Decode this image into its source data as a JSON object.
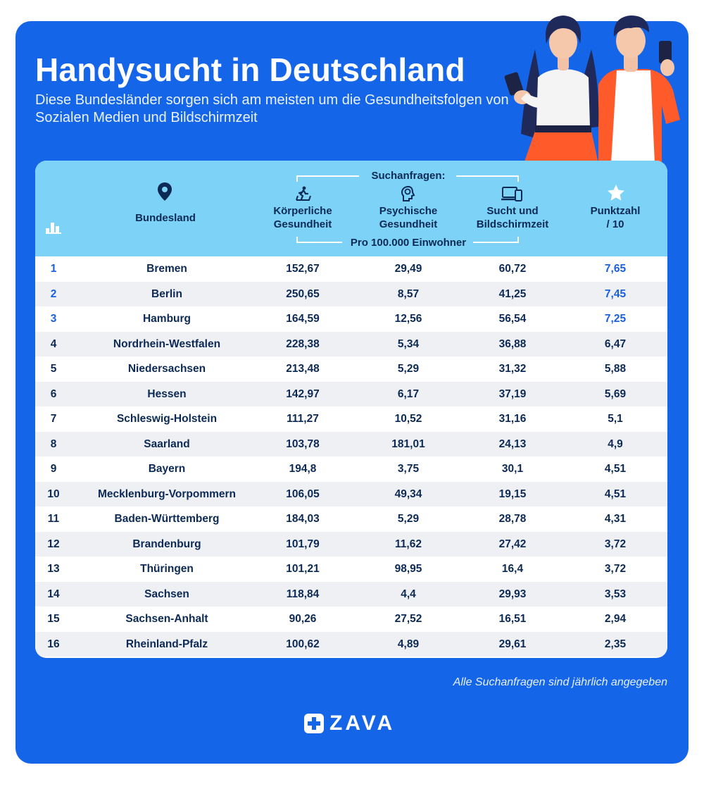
{
  "title": "Handysucht in Deutschland",
  "subtitle": "Diese Bundesländer sorgen sich am meisten um die Gesundheitsfolgen von Sozialen Medien und Bildschirmzeit",
  "colors": {
    "background": "#1565e8",
    "header": "#7dd3f7",
    "text": "#0c2a55",
    "highlight": "#1a5fe0"
  },
  "table": {
    "headers": {
      "bundesland": "Bundesland",
      "group_top": "Suchanfragen:",
      "group_bottom": "Pro 100.000 Einwohner",
      "koerper_1": "Körperliche",
      "koerper_2": "Gesundheit",
      "psych_1": "Psychische",
      "psych_2": "Gesundheit",
      "sucht_1": "Sucht und",
      "sucht_2": "Bildschirmzeit",
      "score_1": "Punktzahl",
      "score_2": "/ 10"
    },
    "icons": {
      "rank": "bar-chart-icon",
      "bundesland": "location-pin-icon",
      "koerper": "treadmill-icon",
      "psych": "brain-head-icon",
      "sucht": "devices-icon",
      "score": "star-icon"
    },
    "rows": [
      {
        "rank": "1",
        "name": "Bremen",
        "koerper": "152,67",
        "psych": "29,49",
        "sucht": "60,72",
        "score": "7,65"
      },
      {
        "rank": "2",
        "name": "Berlin",
        "koerper": "250,65",
        "psych": "8,57",
        "sucht": "41,25",
        "score": "7,45"
      },
      {
        "rank": "3",
        "name": "Hamburg",
        "koerper": "164,59",
        "psych": "12,56",
        "sucht": "56,54",
        "score": "7,25"
      },
      {
        "rank": "4",
        "name": "Nordrhein-Westfalen",
        "koerper": "228,38",
        "psych": "5,34",
        "sucht": "36,88",
        "score": "6,47"
      },
      {
        "rank": "5",
        "name": "Niedersachsen",
        "koerper": "213,48",
        "psych": "5,29",
        "sucht": "31,32",
        "score": "5,88"
      },
      {
        "rank": "6",
        "name": "Hessen",
        "koerper": "142,97",
        "psych": "6,17",
        "sucht": "37,19",
        "score": "5,69"
      },
      {
        "rank": "7",
        "name": "Schleswig-Holstein",
        "koerper": "111,27",
        "psych": "10,52",
        "sucht": "31,16",
        "score": "5,1"
      },
      {
        "rank": "8",
        "name": "Saarland",
        "koerper": "103,78",
        "psych": "181,01",
        "sucht": "24,13",
        "score": "4,9"
      },
      {
        "rank": "9",
        "name": "Bayern",
        "koerper": "194,8",
        "psych": "3,75",
        "sucht": "30,1",
        "score": "4,51"
      },
      {
        "rank": "10",
        "name": "Mecklenburg-Vorpommern",
        "koerper": "106,05",
        "psych": "49,34",
        "sucht": "19,15",
        "score": "4,51"
      },
      {
        "rank": "11",
        "name": "Baden-Württemberg",
        "koerper": "184,03",
        "psych": "5,29",
        "sucht": "28,78",
        "score": "4,31"
      },
      {
        "rank": "12",
        "name": "Brandenburg",
        "koerper": "101,79",
        "psych": "11,62",
        "sucht": "27,42",
        "score": "3,72"
      },
      {
        "rank": "13",
        "name": "Thüringen",
        "koerper": "101,21",
        "psych": "98,95",
        "sucht": "16,4",
        "score": "3,72"
      },
      {
        "rank": "14",
        "name": "Sachsen",
        "koerper": "118,84",
        "psych": "4,4",
        "sucht": "29,93",
        "score": "3,53"
      },
      {
        "rank": "15",
        "name": "Sachsen-Anhalt",
        "koerper": "90,26",
        "psych": "27,52",
        "sucht": "16,51",
        "score": "2,94"
      },
      {
        "rank": "16",
        "name": "Rheinland-Pfalz",
        "koerper": "100,62",
        "psych": "4,89",
        "sucht": "29,61",
        "score": "2,35"
      }
    ]
  },
  "footnote": "Alle Suchanfragen sind jährlich angegeben",
  "logo": "ZAVA"
}
